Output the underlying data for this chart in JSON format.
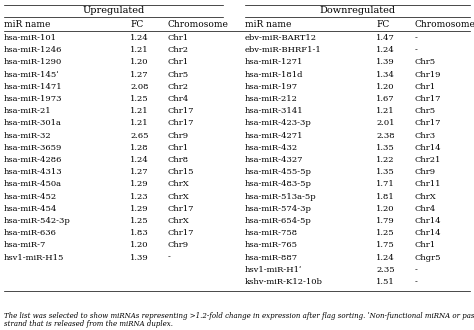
{
  "title_left": "Upregulated",
  "title_right": "Downregulated",
  "col_headers": [
    "miR name",
    "FC",
    "Chromosome",
    "miR name",
    "FC",
    "Chromosome"
  ],
  "upregulated": [
    [
      "hsa-miR-101",
      "1.24",
      "Chr1"
    ],
    [
      "hsa-miR-1246",
      "1.21",
      "Chr2"
    ],
    [
      "hsa-miR-1290",
      "1.20",
      "Chr1"
    ],
    [
      "hsa-miR-145ʹ",
      "1.27",
      "Chr5"
    ],
    [
      "hsa-miR-1471",
      "2.08",
      "Chr2"
    ],
    [
      "hsa-miR-1973",
      "1.25",
      "Chr4"
    ],
    [
      "hsa-miR-21",
      "1.21",
      "Chr17"
    ],
    [
      "hsa-miR-301a",
      "1.21",
      "Chr17"
    ],
    [
      "hsa-miR-32",
      "2.65",
      "Chr9"
    ],
    [
      "hsa-miR-3659",
      "1.28",
      "Chr1"
    ],
    [
      "hsa-miR-4286",
      "1.24",
      "Chr8"
    ],
    [
      "hsa-miR-4313",
      "1.27",
      "Chr15"
    ],
    [
      "hsa-miR-450a",
      "1.29",
      "ChrX"
    ],
    [
      "hsa-miR-452",
      "1.23",
      "ChrX"
    ],
    [
      "hsa-miR-454",
      "1.29",
      "Chr17"
    ],
    [
      "hsa-miR-542-3p",
      "1.25",
      "ChrX"
    ],
    [
      "hsa-miR-636",
      "1.83",
      "Chr17"
    ],
    [
      "hsa-miR-7",
      "1.20",
      "Chr9"
    ],
    [
      "hsv1-miR-H15",
      "1.39",
      "-"
    ]
  ],
  "downregulated": [
    [
      "ebv-miR-BART12",
      "1.47",
      "-"
    ],
    [
      "ebv-miR-BHRF1-1",
      "1.24",
      "-"
    ],
    [
      "hsa-miR-1271",
      "1.39",
      "Chr5"
    ],
    [
      "hsa-miR-181d",
      "1.34",
      "Chr19"
    ],
    [
      "hsa-miR-197",
      "1.20",
      "Chr1"
    ],
    [
      "hsa-miR-212",
      "1.67",
      "Chr17"
    ],
    [
      "hsa-miR-3141",
      "1.21",
      "Chr5"
    ],
    [
      "hsa-miR-423-3p",
      "2.01",
      "Chr17"
    ],
    [
      "hsa-miR-4271",
      "2.38",
      "Chr3"
    ],
    [
      "hsa-miR-432",
      "1.35",
      "Chr14"
    ],
    [
      "hsa-miR-4327",
      "1.22",
      "Chr21"
    ],
    [
      "hsa-miR-455-5p",
      "1.35",
      "Chr9"
    ],
    [
      "hsa-miR-483-5p",
      "1.71",
      "Chr11"
    ],
    [
      "hsa-miR-513a-5p",
      "1.81",
      "ChrX"
    ],
    [
      "hsa-miR-574-3p",
      "1.20",
      "Chr4"
    ],
    [
      "hsa-miR-654-5p",
      "1.79",
      "Chr14"
    ],
    [
      "hsa-miR-758",
      "1.25",
      "Chr14"
    ],
    [
      "hsa-miR-765",
      "1.75",
      "Chr1"
    ],
    [
      "hsa-miR-887",
      "1.24",
      "Chgr5"
    ],
    [
      "hsv1-miR-H1ʹ",
      "2.35",
      "-"
    ],
    [
      "kshv-miR-K12-10b",
      "1.51",
      "-"
    ]
  ],
  "footnote1": "The list was selected to show miRNAs representing >1.2-fold change in expression after flag sorting. ʹNon-functional miRNA or passenger",
  "footnote2": "strand that is released from the miRNA duplex.",
  "bg_color": "#f5f5f5",
  "white": "#ffffff",
  "black": "#000000",
  "fontsize_group": 7.0,
  "fontsize_col": 6.5,
  "fontsize_data": 6.0,
  "fontsize_foot": 5.0
}
